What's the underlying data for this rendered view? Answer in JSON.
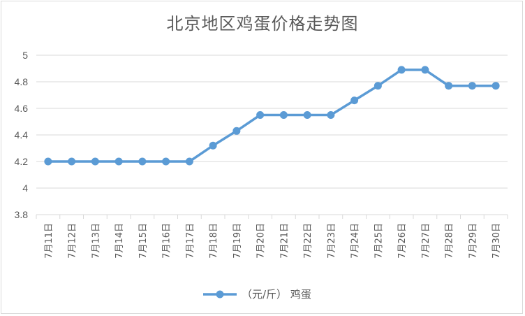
{
  "chart_data": {
    "type": "line",
    "title": "北京地区鸡蛋价格走势图",
    "xlabel": "",
    "ylabel": "",
    "categories": [
      "7月11日",
      "7月12日",
      "7月13日",
      "7月14日",
      "7月15日",
      "7月16日",
      "7月17日",
      "7月18日",
      "7月19日",
      "7月20日",
      "7月21日",
      "7月22日",
      "7月23日",
      "7月24日",
      "7月25日",
      "7月26日",
      "7月27日",
      "7月28日",
      "7月29日",
      "7月30日"
    ],
    "series": [
      {
        "name": "（元/斤） 鸡蛋",
        "values": [
          4.2,
          4.2,
          4.2,
          4.2,
          4.2,
          4.2,
          4.2,
          4.32,
          4.43,
          4.55,
          4.55,
          4.55,
          4.55,
          4.66,
          4.77,
          4.89,
          4.89,
          4.77,
          4.77,
          4.77
        ]
      }
    ],
    "ylim": [
      3.8,
      5
    ],
    "yticks": [
      "3.8",
      "4",
      "4.2",
      "4.4",
      "4.6",
      "4.8",
      "5"
    ],
    "grid": true,
    "legend": "bottom",
    "colors": {
      "series": "#5b9bd5",
      "grid": "#d9d9d9",
      "text": "#595959"
    }
  }
}
